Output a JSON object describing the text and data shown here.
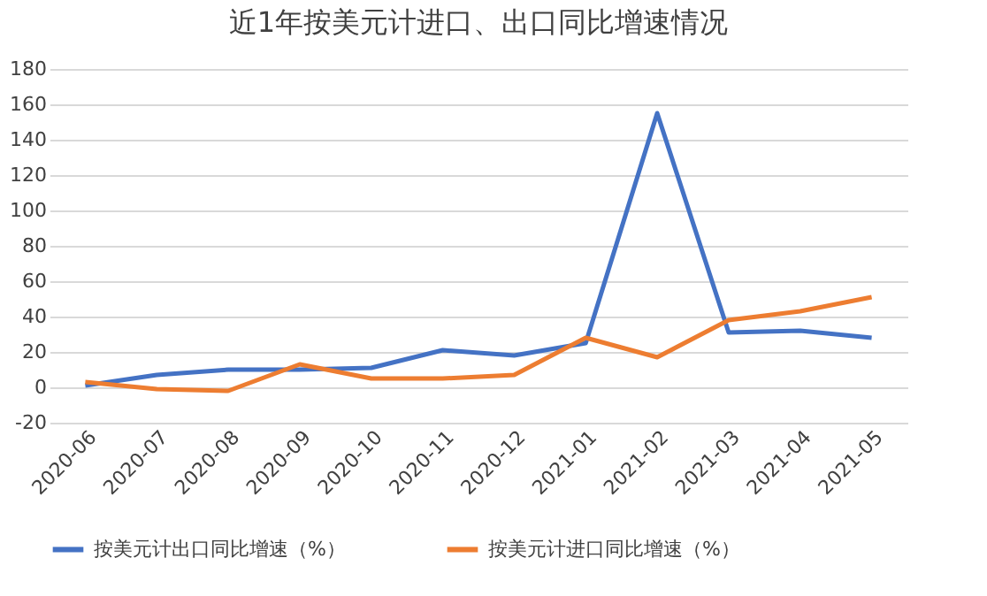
{
  "chart_data": {
    "type": "line",
    "title": "近1年按美元计进口、出口同比增速情况",
    "categories": [
      "2020-06",
      "2020-07",
      "2020-08",
      "2020-09",
      "2020-10",
      "2020-11",
      "2020-12",
      "2021-01",
      "2021-02",
      "2021-03",
      "2021-04",
      "2021-05"
    ],
    "series": [
      {
        "name": "按美元计出口同比增速（%）",
        "color": "#4472c4",
        "values": [
          1,
          7,
          10,
          10,
          11,
          21,
          18,
          25,
          155,
          31,
          32,
          28
        ]
      },
      {
        "name": "按美元计进口同比增速（%）",
        "color": "#ed7d31",
        "values": [
          3,
          -1,
          -2,
          13,
          5,
          5,
          7,
          28,
          17,
          38,
          43,
          51
        ]
      }
    ],
    "ylim": [
      -20,
      180
    ],
    "yticks": [
      -20,
      0,
      20,
      40,
      60,
      80,
      100,
      120,
      140,
      160,
      180
    ],
    "grid": "y",
    "legend": "bottom",
    "marker": "none",
    "line_style": "solid"
  }
}
